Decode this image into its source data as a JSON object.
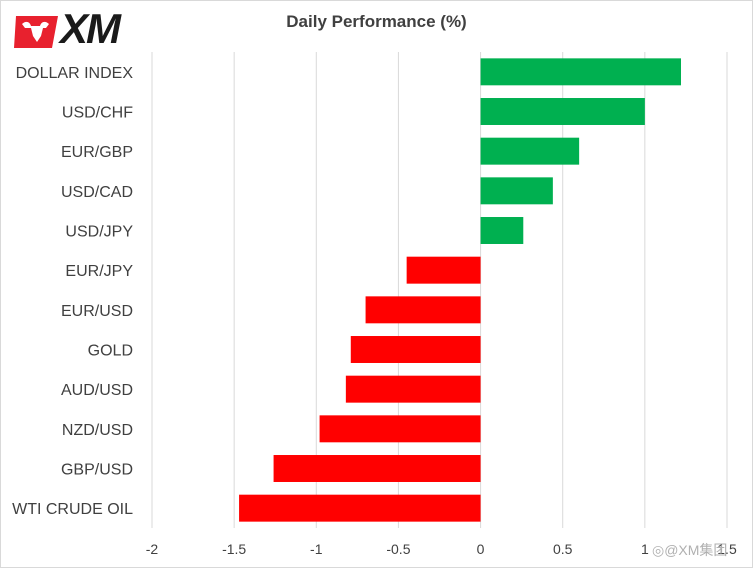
{
  "logo": {
    "text": "XM",
    "icon": "xm-bull-logo",
    "colors": {
      "red": "#e8212e",
      "dark": "#1a1a1a"
    }
  },
  "watermark": {
    "text": "@XM集团",
    "icon": "weibo-icon"
  },
  "chart_data": {
    "type": "bar",
    "orientation": "horizontal",
    "title": "Daily Performance (%)",
    "xlabel": "",
    "ylabel": "",
    "categories": [
      "DOLLAR INDEX",
      "USD/CHF",
      "EUR/GBP",
      "USD/CAD",
      "USD/JPY",
      "EUR/JPY",
      "EUR/USD",
      "GOLD",
      "AUD/USD",
      "NZD/USD",
      "GBP/USD",
      "WTI CRUDE OIL"
    ],
    "values": [
      1.22,
      1.0,
      0.6,
      0.44,
      0.26,
      -0.45,
      -0.7,
      -0.79,
      -0.82,
      -0.98,
      -1.26,
      -1.47
    ],
    "xlim": [
      -2,
      1.5
    ],
    "xticks": [
      -2,
      -1.5,
      -1,
      -0.5,
      0,
      0.5,
      1,
      1.5
    ],
    "xtick_labels": [
      "-2",
      "-1.5",
      "-1",
      "-0.5",
      "0",
      "0.5",
      "1",
      "1.5"
    ],
    "grid": {
      "vertical": true,
      "horizontal": false
    },
    "legend": "none",
    "colors": {
      "positive": "#00b050",
      "negative": "#ff0000",
      "grid": "#d9d9d9"
    }
  }
}
